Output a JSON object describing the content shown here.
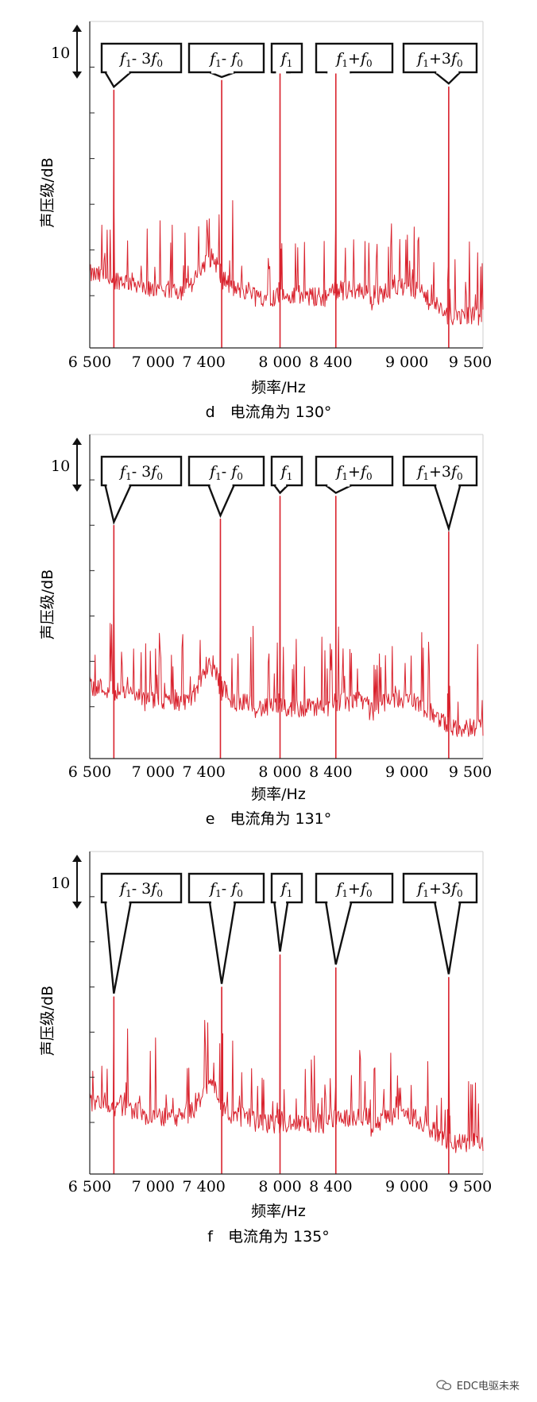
{
  "chart_data": [
    {
      "type": "line",
      "subtitle": "d　电流角为 130°",
      "xlabel": "频率/Hz",
      "ylabel": "声压级/dB",
      "xlim": [
        6500,
        9600
      ],
      "x_tick_labels": [
        "6 500",
        "7 000",
        "7 400",
        "8 000",
        "8 400",
        "9 000",
        "9 500"
      ],
      "x_tick_values": [
        6500,
        7000,
        7400,
        8000,
        8400,
        9000,
        9500
      ],
      "y_scale_marker": "10",
      "y_units_shown": "relative",
      "series_color": "#d9232e",
      "peaks": [
        {
          "label_parts": [
            "f",
            "1",
            "- 3",
            "f",
            "0",
            ""
          ],
          "x": 6690,
          "level": 0.79
        },
        {
          "label_parts": [
            "f",
            "1",
            "- ",
            "f",
            "0",
            ""
          ],
          "x": 7540,
          "level": 0.82
        },
        {
          "label_parts": [
            "f",
            "1",
            "",
            "",
            "",
            ""
          ],
          "x": 8000,
          "level": 0.85
        },
        {
          "label_parts": [
            "f",
            "1",
            "+",
            "f",
            "0",
            ""
          ],
          "x": 8440,
          "level": 0.85
        },
        {
          "label_parts": [
            "f",
            "1",
            "+3",
            "f",
            "0",
            ""
          ],
          "x": 9330,
          "level": 0.8
        }
      ]
    },
    {
      "type": "line",
      "subtitle": "e　电流角为 131°",
      "xlabel": "频率/Hz",
      "ylabel": "声压级/dB",
      "xlim": [
        6500,
        9600
      ],
      "x_tick_labels": [
        "6 500",
        "7 000",
        "7 400",
        "8 000",
        "8 400",
        "9 000",
        "9 500"
      ],
      "x_tick_values": [
        6500,
        7000,
        7400,
        8000,
        8400,
        9000,
        9500
      ],
      "y_scale_marker": "10",
      "y_units_shown": "relative",
      "series_color": "#d9232e",
      "peaks": [
        {
          "label_parts": [
            "f",
            "1",
            "- 3",
            "f",
            "0",
            ""
          ],
          "x": 6690,
          "level": 0.72
        },
        {
          "label_parts": [
            "f",
            "1",
            "- ",
            "f",
            "0",
            ""
          ],
          "x": 7530,
          "level": 0.74
        },
        {
          "label_parts": [
            "f",
            "1",
            "",
            "",
            "",
            ""
          ],
          "x": 8000,
          "level": 0.81
        },
        {
          "label_parts": [
            "f",
            "1",
            "+",
            "f",
            "0",
            ""
          ],
          "x": 8440,
          "level": 0.81
        },
        {
          "label_parts": [
            "f",
            "1",
            "+3",
            "f",
            "0",
            ""
          ],
          "x": 9330,
          "level": 0.7
        }
      ]
    },
    {
      "type": "line",
      "subtitle": "f　电流角为 135°",
      "xlabel": "频率/Hz",
      "ylabel": "声压级/dB",
      "xlim": [
        6500,
        9600
      ],
      "x_tick_labels": [
        "6 500",
        "7 000",
        "7 400",
        "8 000",
        "8 400",
        "9 000",
        "9 500"
      ],
      "x_tick_values": [
        6500,
        7000,
        7400,
        8000,
        8400,
        9000,
        9500
      ],
      "y_scale_marker": "10",
      "y_units_shown": "relative",
      "series_color": "#d9232e",
      "peaks": [
        {
          "label_parts": [
            "f",
            "1",
            "- 3",
            "f",
            "0",
            ""
          ],
          "x": 6690,
          "level": 0.55
        },
        {
          "label_parts": [
            "f",
            "1",
            "- ",
            "f",
            "0",
            ""
          ],
          "x": 7540,
          "level": 0.58
        },
        {
          "label_parts": [
            "f",
            "1",
            "",
            "",
            "",
            ""
          ],
          "x": 8000,
          "level": 0.68
        },
        {
          "label_parts": [
            "f",
            "1",
            "+",
            "f",
            "0",
            ""
          ],
          "x": 8440,
          "level": 0.64
        },
        {
          "label_parts": [
            "f",
            "1",
            "+3",
            "f",
            "0",
            ""
          ],
          "x": 9330,
          "level": 0.61
        }
      ]
    }
  ],
  "watermark": {
    "text": "EDC电驱未来",
    "icon": "wechat-icon"
  }
}
